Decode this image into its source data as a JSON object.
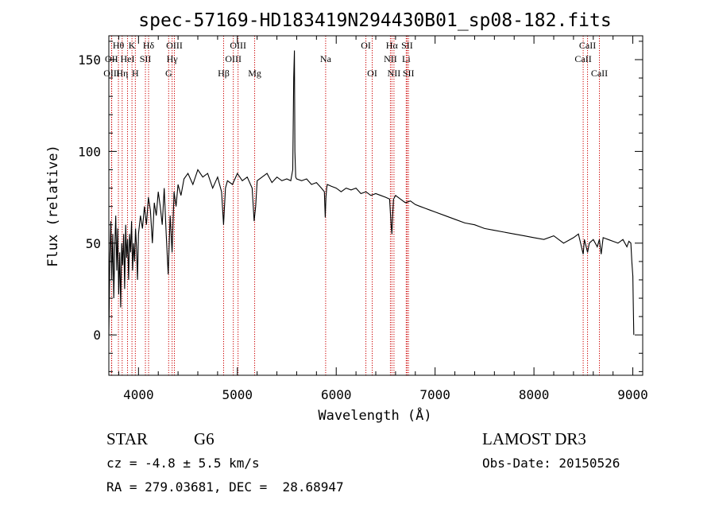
{
  "chart_data": {
    "type": "line",
    "title": "spec-57169-HD183419N294430B01_sp08-182.fits",
    "xlabel": "Wavelength (Å)",
    "ylabel": "Flux (relative)",
    "xlim": [
      3700,
      9100
    ],
    "ylim": [
      -22,
      163
    ],
    "xticks": [
      4000,
      5000,
      6000,
      7000,
      8000,
      9000
    ],
    "yticks": [
      0,
      50,
      100,
      150
    ],
    "grid": false,
    "line_color": "#000000",
    "marker_color": "#cc0000",
    "series": [
      {
        "name": "spectrum",
        "x": [
          3700,
          3710,
          3720,
          3730,
          3740,
          3750,
          3760,
          3770,
          3780,
          3790,
          3800,
          3810,
          3820,
          3830,
          3840,
          3850,
          3860,
          3870,
          3880,
          3890,
          3900,
          3910,
          3920,
          3930,
          3940,
          3950,
          3960,
          3970,
          3980,
          3990,
          4000,
          4020,
          4040,
          4060,
          4080,
          4100,
          4120,
          4140,
          4160,
          4180,
          4200,
          4220,
          4240,
          4260,
          4280,
          4300,
          4320,
          4340,
          4360,
          4380,
          4400,
          4430,
          4460,
          4500,
          4550,
          4600,
          4650,
          4700,
          4750,
          4800,
          4840,
          4860,
          4880,
          4900,
          4950,
          5000,
          5050,
          5100,
          5150,
          5170,
          5185,
          5200,
          5250,
          5300,
          5350,
          5400,
          5450,
          5500,
          5540,
          5560,
          5570,
          5577,
          5582,
          5590,
          5600,
          5650,
          5700,
          5750,
          5800,
          5850,
          5880,
          5889,
          5896,
          5903,
          5910,
          5950,
          6000,
          6050,
          6100,
          6150,
          6200,
          6250,
          6300,
          6350,
          6400,
          6450,
          6500,
          6540,
          6555,
          6563,
          6570,
          6580,
          6600,
          6650,
          6700,
          6750,
          6800,
          6850,
          6900,
          6950,
          7000,
          7100,
          7200,
          7300,
          7400,
          7500,
          7600,
          7700,
          7800,
          7900,
          8000,
          8100,
          8200,
          8300,
          8400,
          8450,
          8498,
          8510,
          8542,
          8560,
          8600,
          8640,
          8662,
          8680,
          8700,
          8750,
          8800,
          8850,
          8900,
          8940,
          8960,
          8980,
          8990,
          9000,
          9005,
          9010
        ],
        "y": [
          0,
          40,
          62,
          30,
          55,
          20,
          48,
          65,
          35,
          58,
          22,
          45,
          15,
          50,
          38,
          55,
          25,
          60,
          42,
          52,
          30,
          55,
          45,
          62,
          35,
          50,
          40,
          58,
          48,
          30,
          55,
          65,
          58,
          70,
          60,
          75,
          68,
          50,
          72,
          65,
          78,
          70,
          60,
          80,
          55,
          33,
          65,
          45,
          78,
          70,
          82,
          76,
          85,
          88,
          82,
          90,
          86,
          88,
          80,
          86,
          78,
          60,
          80,
          84,
          82,
          88,
          84,
          86,
          80,
          62,
          70,
          84,
          86,
          88,
          83,
          86,
          84,
          85,
          84,
          90,
          140,
          155,
          100,
          86,
          85,
          84,
          85,
          82,
          83,
          80,
          78,
          64,
          75,
          80,
          82,
          81,
          80,
          78,
          80,
          79,
          80,
          77,
          78,
          76,
          77,
          76,
          75,
          74,
          60,
          55,
          65,
          74,
          76,
          74,
          72,
          73,
          71,
          70,
          69,
          68,
          67,
          65,
          63,
          61,
          60,
          58,
          57,
          56,
          55,
          54,
          53,
          52,
          54,
          50,
          53,
          55,
          44,
          52,
          45,
          50,
          52,
          48,
          52,
          44,
          53,
          52,
          51,
          50,
          52,
          48,
          51,
          50,
          40,
          32,
          15,
          0
        ]
      }
    ],
    "spectral_lines": [
      {
        "label": "Hθ",
        "wl": 3797,
        "row": 0
      },
      {
        "label": "OII",
        "wl": 3727,
        "row": 1
      },
      {
        "label": "OIII",
        "wl": 3729,
        "row": 2
      },
      {
        "label": "Hη",
        "wl": 3835,
        "row": 2
      },
      {
        "label": "HeI",
        "wl": 3889,
        "row": 1
      },
      {
        "label": "K",
        "wl": 3934,
        "row": 0
      },
      {
        "label": "H",
        "wl": 3968,
        "row": 2
      },
      {
        "label": "SII",
        "wl": 4070,
        "row": 1
      },
      {
        "label": "Hδ",
        "wl": 4102,
        "row": 0
      },
      {
        "label": "OIII",
        "wl": 4363,
        "row": 0
      },
      {
        "label": "Hγ",
        "wl": 4340,
        "row": 1
      },
      {
        "label": "G",
        "wl": 4305,
        "row": 2
      },
      {
        "label": "Hβ",
        "wl": 4861,
        "row": 2
      },
      {
        "label": "OIII",
        "wl": 5007,
        "row": 0
      },
      {
        "label": "OIII",
        "wl": 4959,
        "row": 1
      },
      {
        "label": "Mg",
        "wl": 5175,
        "row": 2
      },
      {
        "label": "Na",
        "wl": 5893,
        "row": 1
      },
      {
        "label": "OI",
        "wl": 6300,
        "row": 0
      },
      {
        "label": "OI",
        "wl": 6364,
        "row": 2
      },
      {
        "label": "Hα",
        "wl": 6563,
        "row": 0
      },
      {
        "label": "NII",
        "wl": 6548,
        "row": 1
      },
      {
        "label": "NII",
        "wl": 6584,
        "row": 2
      },
      {
        "label": "SII",
        "wl": 6717,
        "row": 0
      },
      {
        "label": "Li",
        "wl": 6708,
        "row": 1
      },
      {
        "label": "SII",
        "wl": 6731,
        "row": 2
      },
      {
        "label": "CaII",
        "wl": 8542,
        "row": 0
      },
      {
        "label": "CaII",
        "wl": 8498,
        "row": 1
      },
      {
        "label": "CaII",
        "wl": 8662,
        "row": 2
      }
    ]
  },
  "info": {
    "class_label": "STAR",
    "subclass": "G6",
    "cz": "cz = -4.8 ± 5.5 km/s",
    "coords": "RA = 279.03681, DEC =  28.68947",
    "survey": "LAMOST DR3",
    "obs_date": "Obs-Date: 20150526"
  }
}
